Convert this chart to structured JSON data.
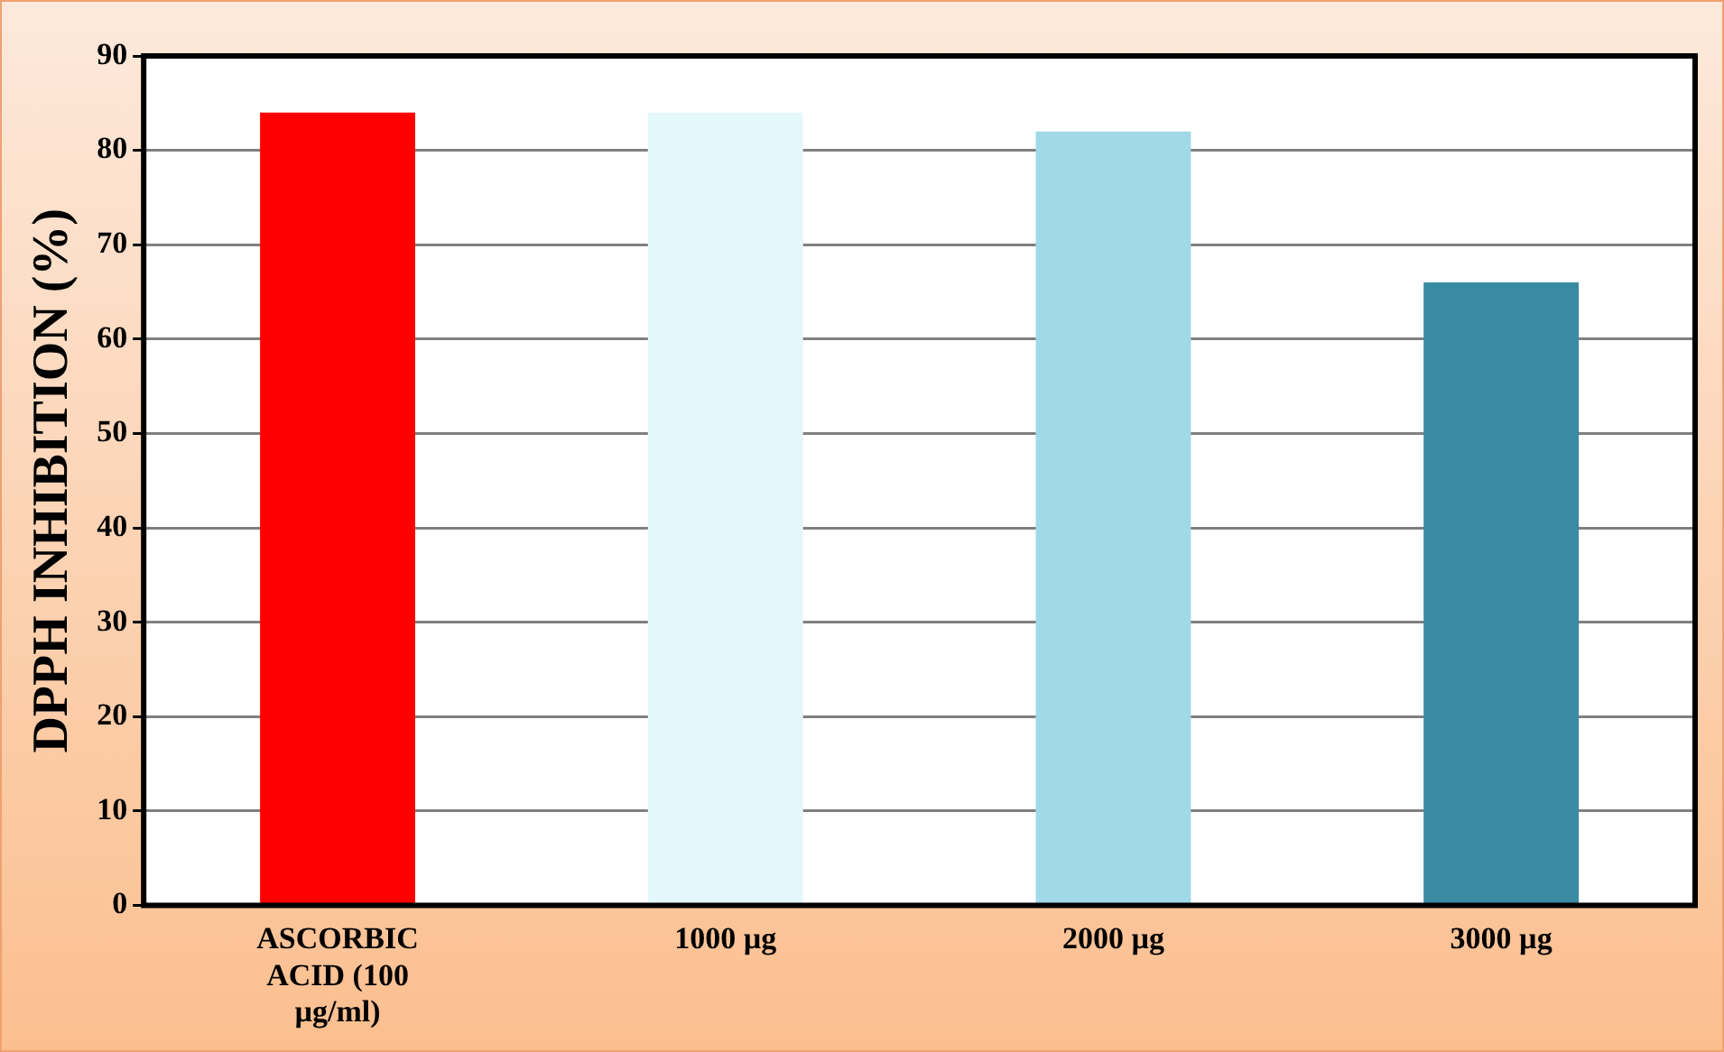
{
  "chart_data": {
    "type": "bar",
    "ylabel": "DPPH INHIBITION (%)",
    "categories": [
      "ASCORBIC ACID (100 µg/ml)",
      "1000 µg",
      "2000 µg",
      "3000 µg"
    ],
    "values": [
      84,
      84,
      82,
      66
    ],
    "colors": [
      "#ff0000",
      "#e4f8fc",
      "#a0d9e8",
      "#388ba3"
    ],
    "ylim": [
      0,
      90
    ],
    "yticks": [
      0,
      10,
      20,
      30,
      40,
      50,
      60,
      70,
      80,
      90
    ],
    "grid": "y",
    "legend": false
  }
}
